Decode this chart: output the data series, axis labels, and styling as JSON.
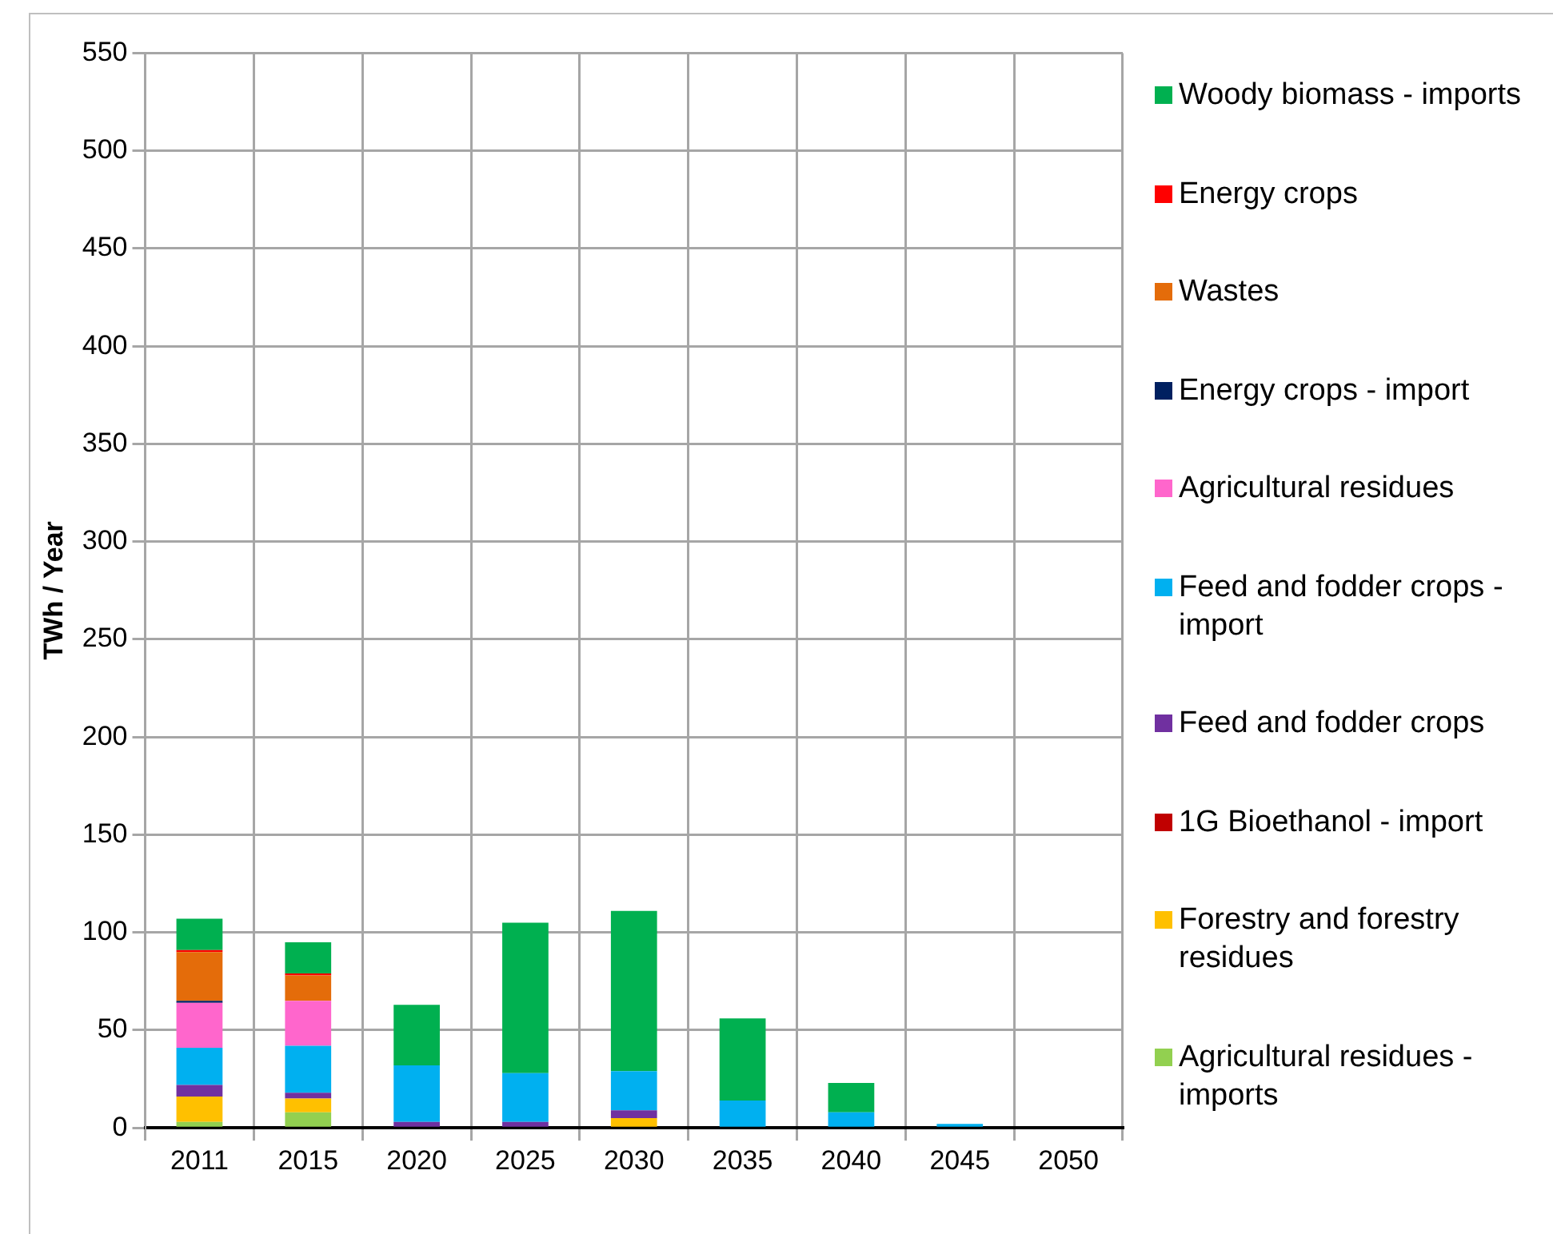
{
  "chart_data": {
    "type": "bar",
    "stacked": true,
    "ylabel": "TWh / Year",
    "categories": [
      "2011",
      "2015",
      "2020",
      "2025",
      "2030",
      "2035",
      "2040",
      "2045",
      "2050"
    ],
    "ylim": [
      0,
      550
    ],
    "yticks": [
      0,
      50,
      100,
      150,
      200,
      250,
      300,
      350,
      400,
      450,
      500,
      550
    ],
    "grid": true,
    "legend": "right",
    "series": [
      {
        "name": "Agricultural residues - imports",
        "color": "#92d050",
        "values": [
          3,
          8,
          0,
          0,
          0,
          0,
          0,
          0,
          0
        ]
      },
      {
        "name": "Forestry and forestry residues",
        "color": "#ffc000",
        "values": [
          13,
          7,
          0,
          0,
          5,
          0,
          0,
          0,
          0
        ]
      },
      {
        "name": "1G Bioethanol - import",
        "color": "#c00000",
        "values": [
          0,
          0,
          0,
          0,
          0,
          0,
          0,
          0,
          0
        ]
      },
      {
        "name": "Feed and fodder crops",
        "color": "#7030a0",
        "values": [
          6,
          3,
          3,
          3,
          4,
          0,
          0,
          0,
          0
        ]
      },
      {
        "name": "Feed and fodder crops - import",
        "color": "#00b0f0",
        "values": [
          19,
          24,
          29,
          25,
          20,
          14,
          8,
          2,
          0
        ]
      },
      {
        "name": "Agricultural residues",
        "color": "#ff66cc",
        "values": [
          23,
          23,
          0,
          0,
          0,
          0,
          0,
          0,
          0
        ]
      },
      {
        "name": "Energy crops - import",
        "color": "#002060",
        "values": [
          1,
          0,
          0,
          0,
          0,
          0,
          0,
          0,
          0
        ]
      },
      {
        "name": "Wastes",
        "color": "#e46c0a",
        "values": [
          25,
          13,
          0,
          0,
          0,
          0,
          0,
          0,
          0
        ]
      },
      {
        "name": "Energy crops",
        "color": "#ff0000",
        "values": [
          1,
          1,
          0,
          0,
          0,
          0,
          0,
          0,
          0
        ]
      },
      {
        "name": "Woody biomass - imports",
        "color": "#00b050",
        "values": [
          16,
          16,
          31,
          77,
          82,
          42,
          15,
          0,
          0
        ]
      }
    ]
  }
}
